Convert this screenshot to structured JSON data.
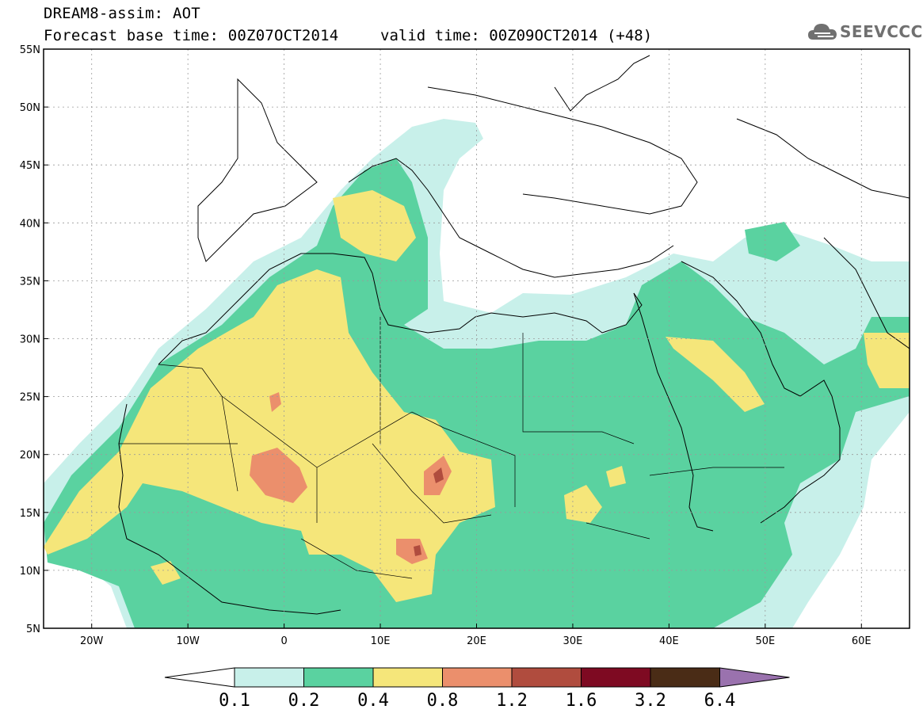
{
  "header": {
    "title_line1": "DREAM8-assim: AOT",
    "title_line2": "Forecast base time: 00Z07OCT2014",
    "valid_time": "valid time: 00Z09OCT2014 (+48)",
    "logo_text": "SEEVCCC"
  },
  "axes": {
    "lat_labels": [
      "55N",
      "50N",
      "45N",
      "40N",
      "35N",
      "30N",
      "25N",
      "20N",
      "15N",
      "10N",
      "5N"
    ],
    "lon_labels": [
      "20W",
      "10W",
      "0",
      "10E",
      "20E",
      "30E",
      "40E",
      "50E",
      "60E"
    ]
  },
  "colorbar": {
    "labels": [
      "0.1",
      "0.2",
      "0.4",
      "0.8",
      "1.2",
      "1.6",
      "3.2",
      "6.4"
    ],
    "colors": [
      "#c8f0ea",
      "#5ad2a0",
      "#f5e67a",
      "#eb8f6c",
      "#b04c3e",
      "#7e0a22",
      "#4a2c16",
      "#9a72ae"
    ]
  },
  "colors": {
    "c01": "#c8f0ea",
    "c02": "#5ad2a0",
    "c04": "#f5e67a",
    "c08": "#eb8f6c",
    "c12": "#b04c3e"
  }
}
